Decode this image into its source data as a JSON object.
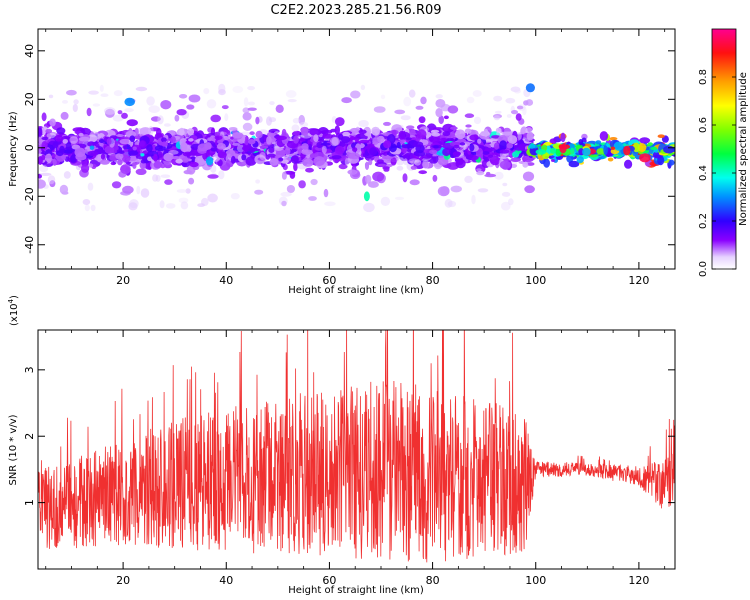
{
  "chart_data": [
    {
      "type": "heatmap",
      "title": "C2E2.2023.285.21.56.R09",
      "xlabel": "Height of straight line (km)",
      "ylabel": "Frequency (Hz)",
      "xlim": [
        3.5,
        127
      ],
      "ylim": [
        -50,
        49
      ],
      "xticks": [
        20,
        40,
        60,
        80,
        100,
        120
      ],
      "yticks": [
        -40,
        -20,
        0,
        20,
        40
      ],
      "colorbar": {
        "label": "Normalized spectral amplitude",
        "range": [
          0,
          1
        ],
        "ticks": [
          0.0,
          0.2,
          0.4,
          0.6,
          0.8
        ],
        "tick_labels": [
          "0.0",
          "0.2",
          "0.4",
          "0.6",
          "0.8"
        ]
      },
      "bands": [
        {
          "x_range": [
            3.5,
            99
          ],
          "center_freq": 0,
          "spread_hz": 10,
          "max_spread_hz": 25,
          "typical_amplitude": 0.15,
          "peak_amplitude": 0.45
        },
        {
          "x_range": [
            99,
            127
          ],
          "center_freq": -1,
          "spread_hz": 3,
          "max_spread_hz": 6,
          "typical_amplitude": 0.5,
          "peak_amplitude": 0.95
        }
      ]
    },
    {
      "type": "line",
      "xlabel": "Height of straight line (km)",
      "ylabel": "SNR (10 * v/v)",
      "scale_label": "(x10",
      "scale_exponent": "4",
      "scale_suffix": ")",
      "xlim": [
        3.5,
        127
      ],
      "ylim": [
        0,
        3.6
      ],
      "xticks": [
        20,
        40,
        60,
        80,
        100,
        120
      ],
      "yticks": [
        1,
        2,
        3
      ],
      "color": "#f03030",
      "envelope": {
        "x": [
          4,
          10,
          20,
          30,
          40,
          50,
          60,
          70,
          80,
          90,
          98,
          100,
          110,
          120,
          125,
          127
        ],
        "mean": [
          0.9,
          1.0,
          1.15,
          1.3,
          1.35,
          1.4,
          1.45,
          1.45,
          1.45,
          1.35,
          1.3,
          1.5,
          1.5,
          1.4,
          1.25,
          1.6
        ],
        "amplitude": [
          0.6,
          0.7,
          0.8,
          1.0,
          1.1,
          1.2,
          1.3,
          1.4,
          1.35,
          1.2,
          1.1,
          0.12,
          0.1,
          0.15,
          0.4,
          0.6
        ]
      }
    }
  ]
}
